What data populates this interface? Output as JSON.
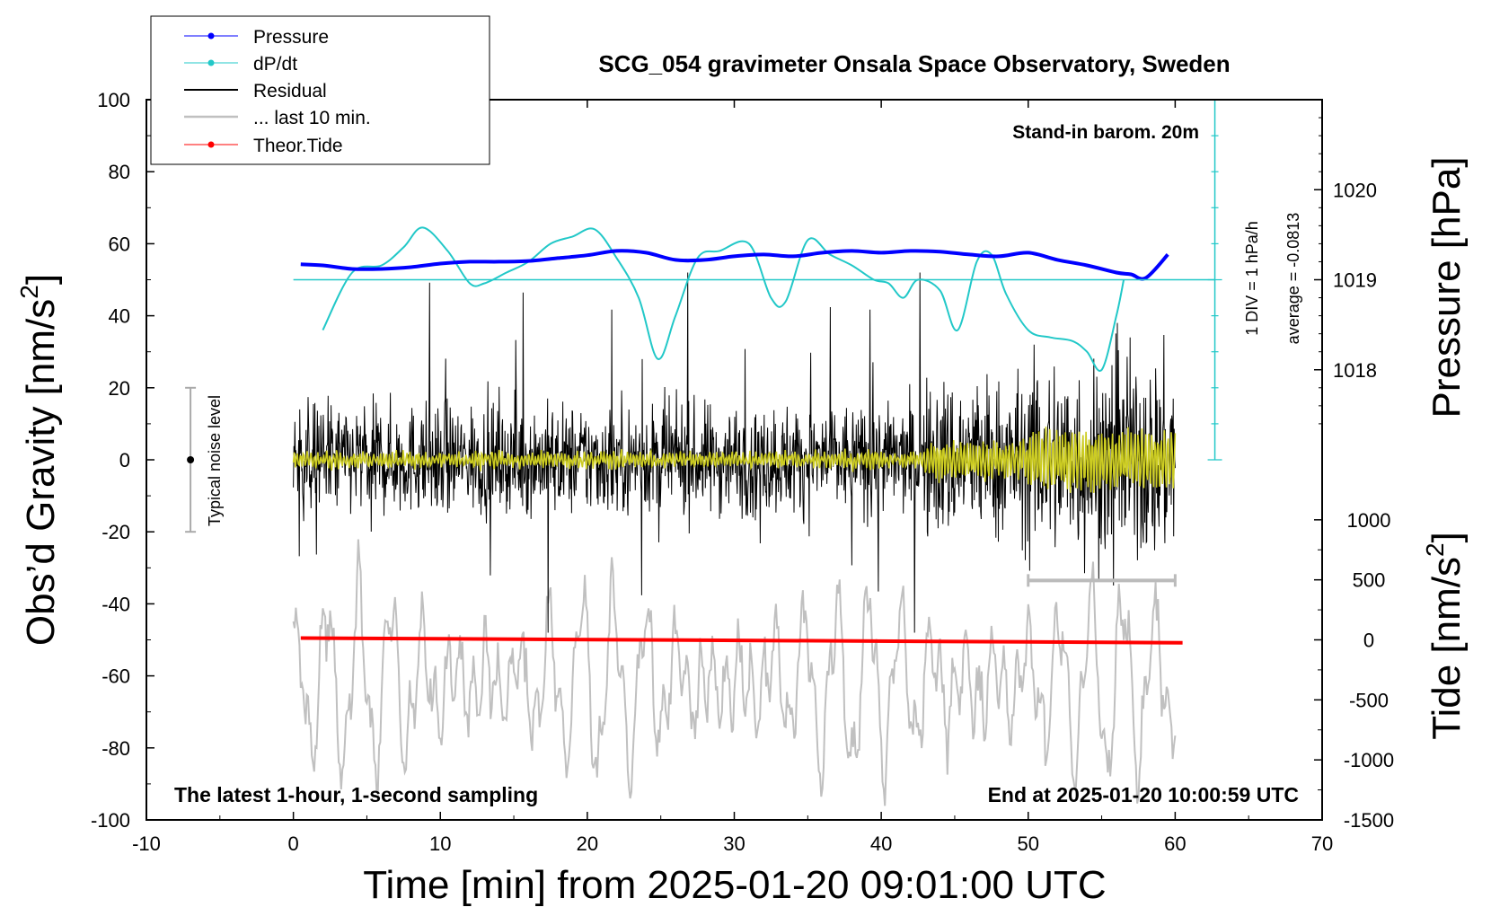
{
  "chart_data": {
    "type": "line",
    "title": "SCG_054 gravimeter Onsala Space Observatory, Sweden",
    "xlabel": "Time [min] from 2025-01-20 09:01:00 UTC",
    "ylabel_left": "Obs’d Gravity [nm/s",
    "ylabel_right_top": "Pressure [hPa]",
    "ylabel_right_bottom": "Tide [nm/s",
    "superscript": "2",
    "xlim": [
      -10,
      70
    ],
    "ylim": [
      -100,
      100
    ],
    "x_ticks": [
      -10,
      0,
      10,
      20,
      30,
      40,
      50,
      60,
      70
    ],
    "y_ticks": [
      -100,
      -80,
      -60,
      -40,
      -20,
      0,
      20,
      40,
      60,
      80,
      100
    ],
    "pressure_ticks": [
      1018,
      1019,
      1020
    ],
    "tide_ticks": [
      1000,
      500,
      0,
      -500,
      -1000,
      -1500
    ],
    "annotations": {
      "barometer": "Stand-in barom. 20m",
      "div_note": "1 DIV = 1 hPa/h",
      "average": "average = -0.0813",
      "noise": "Typical noise level",
      "bottom_left": "The latest 1-hour, 1-second sampling",
      "bottom_right": "End at 2025-01-20 10:00:59 UTC"
    },
    "legend": [
      {
        "label": "Pressure",
        "color": "#0000ff"
      },
      {
        "label": "dP/dt",
        "color": "#22c8c8"
      },
      {
        "label": "Residual",
        "color": "#000000"
      },
      {
        "label": "... last 10 min.",
        "color": "#c0c0c0"
      },
      {
        "label": "Theor.Tide",
        "color": "#ff0000"
      }
    ],
    "series": [
      {
        "name": "Pressure",
        "color": "#0000ff",
        "x": [
          0.5,
          2,
          4,
          6,
          8,
          10,
          12,
          14,
          16,
          18,
          20,
          22,
          24,
          26,
          28,
          30,
          32,
          34,
          36,
          38,
          40,
          42,
          44,
          46,
          48,
          50,
          52,
          54,
          56,
          57,
          58,
          59.5
        ],
        "y": [
          54.3,
          54,
          53,
          53,
          53.5,
          54.5,
          55,
          55,
          55.2,
          56,
          56.8,
          58,
          57.5,
          55.5,
          55.5,
          56.5,
          57,
          56.5,
          57.5,
          58,
          57.5,
          58,
          57.8,
          57,
          56.5,
          57.5,
          55.5,
          54,
          52,
          51.5,
          50.5,
          57
        ]
      },
      {
        "name": "dP/dt",
        "color": "#22c8c8",
        "x": [
          2,
          4,
          6,
          7.5,
          8.8,
          10.5,
          12,
          13,
          14.5,
          16,
          17.5,
          19,
          20.5,
          22,
          23.5,
          24.8,
          26,
          27.5,
          29,
          31,
          32.5,
          33.5,
          35,
          36.5,
          38,
          39.5,
          40.5,
          41.5,
          42.5,
          44,
          45.2,
          46.5,
          47.5,
          48.5,
          50,
          51.5,
          53,
          54,
          55,
          56,
          56.5
        ],
        "y": [
          36,
          52,
          54,
          59,
          64.5,
          58,
          49,
          49,
          52,
          55,
          60,
          62,
          64,
          56,
          45,
          28,
          40,
          56,
          58,
          60,
          45,
          44,
          61,
          57,
          54,
          50,
          49,
          45,
          50,
          47,
          36,
          55,
          57,
          46,
          36,
          34,
          33,
          30,
          25,
          40,
          50
        ]
      },
      {
        "name": "Theor.Tide",
        "color": "#ff0000",
        "x": [
          0.5,
          60.5
        ],
        "y": [
          -49.5,
          -50.8
        ]
      }
    ]
  }
}
